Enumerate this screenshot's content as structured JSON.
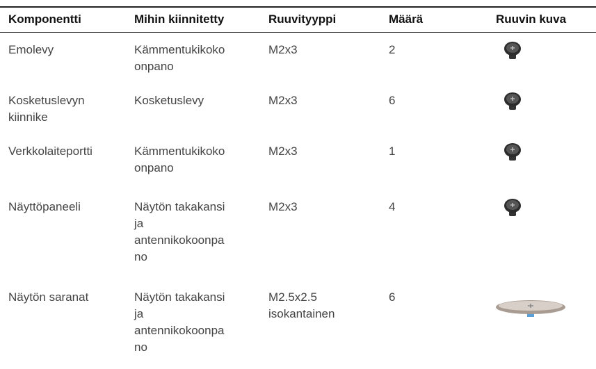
{
  "table": {
    "header": [
      "Komponentti",
      "Mihin kiinnitetty",
      "Ruuvityyppi",
      "Määrä",
      "Ruuvin kuva"
    ],
    "rows": [
      [
        [
          "Emolevy"
        ],
        [
          "Kämmentukikoko",
          "onpano"
        ],
        [
          "M2x3"
        ],
        [
          "2"
        ]
      ],
      [
        [
          "Kosketuslevyn",
          "kiinnike"
        ],
        [
          "Kosketuslevy"
        ],
        [
          "M2x3"
        ],
        [
          "6"
        ]
      ],
      [
        [
          "Verkkolaiteportti"
        ],
        [
          "Kämmentukikoko",
          "onpano"
        ],
        [
          "M2x3"
        ],
        [
          "1"
        ]
      ],
      [
        [
          "Näyttöpaneeli"
        ],
        [
          "Näytön takakansi",
          "ja",
          "antennikokoonpa",
          "no"
        ],
        [
          "M2x3"
        ],
        [
          "4"
        ]
      ],
      [
        [
          "Näytön saranat"
        ],
        [
          "Näytön takakansi",
          "ja",
          "antennikokoonpa",
          "no"
        ],
        [
          "M2.5x2.5",
          "isokantainen"
        ],
        [
          "6"
        ]
      ]
    ]
  }
}
